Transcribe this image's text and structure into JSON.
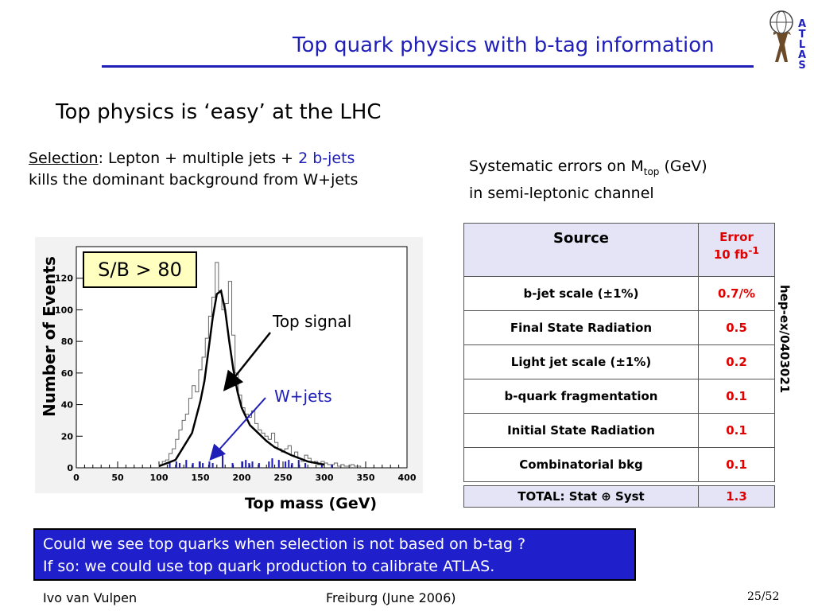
{
  "slide": {
    "title": "Top quark physics with b-tag information",
    "heading": "Top physics is ‘easy’ at the LHC",
    "selection": {
      "label": "Selection",
      "text_a": ": Lepton + multiple jets + ",
      "text_b": "2 b-jets",
      "line2": "kills the dominant background from W+jets"
    },
    "systematics": {
      "line1_a": "Systematic errors on M",
      "line1_sub": "top",
      "line1_b": " (GeV)",
      "line2": "in semi-leptonic channel"
    },
    "reference": "hep-ex/0403021",
    "question": {
      "line1": "Could we see top quarks when selection is not based on b-tag ?",
      "line2": "If so: we could use top quark production to calibrate ATLAS."
    },
    "footer": {
      "author": "Ivo van Vulpen",
      "event": "Freiburg (June 2006)",
      "page": "25/52"
    },
    "logo": {
      "text": "ATLAS",
      "icon": "atlas-figure-globe-icon"
    },
    "colors": {
      "accent": "#1f1fb8",
      "error": "#e00000",
      "box_bg": "#1f1fcc",
      "table_header": "#e4e4f6"
    }
  },
  "table": {
    "header": {
      "source": "Source",
      "error_a": "Error",
      "error_b": "10 fb",
      "error_sup": "-1"
    },
    "rows": [
      {
        "source": "b-jet scale (±1%)",
        "error": "0.7/%"
      },
      {
        "source": "Final State Radiation",
        "error": "0.5"
      },
      {
        "source": "Light jet scale (±1%)",
        "error": "0.2"
      },
      {
        "source": "b-quark fragmentation",
        "error": "0.1"
      },
      {
        "source": "Initial State Radiation",
        "error": "0.1"
      },
      {
        "source": "Combinatorial bkg",
        "error": "0.1"
      }
    ],
    "total": {
      "source": "TOTAL: Stat ⊕ Syst",
      "error": "1.3"
    }
  },
  "chart_data": {
    "type": "bar",
    "xlabel": "Top mass (GeV)",
    "ylabel": "Number of Events",
    "xlim": [
      0,
      400
    ],
    "ylim": [
      0,
      140
    ],
    "xticks": [
      0,
      50,
      100,
      150,
      200,
      250,
      300,
      350,
      400
    ],
    "yticks": [
      0,
      20,
      40,
      60,
      80,
      100,
      120
    ],
    "annotation_box": "S/B > 80",
    "labels": {
      "signal": "Top signal",
      "background": "W+jets"
    },
    "bin_width": 4,
    "signal_histogram": {
      "x": [
        100,
        104,
        108,
        112,
        116,
        120,
        124,
        128,
        132,
        136,
        140,
        144,
        148,
        152,
        156,
        160,
        164,
        168,
        172,
        176,
        180,
        184,
        188,
        192,
        196,
        200,
        204,
        208,
        212,
        216,
        220,
        224,
        228,
        232,
        236,
        240,
        244,
        248,
        252,
        256,
        260,
        264,
        268,
        272,
        276,
        280,
        284,
        288,
        292,
        296,
        300,
        304,
        308,
        312,
        316,
        320,
        324,
        328,
        332,
        336,
        340
      ],
      "values": [
        2,
        4,
        5,
        9,
        12,
        18,
        24,
        30,
        34,
        44,
        52,
        48,
        62,
        70,
        82,
        96,
        108,
        130,
        112,
        100,
        104,
        118,
        84,
        60,
        46,
        38,
        34,
        32,
        36,
        28,
        24,
        22,
        20,
        18,
        22,
        16,
        12,
        10,
        12,
        14,
        8,
        10,
        6,
        4,
        8,
        6,
        3,
        4,
        2,
        4,
        3,
        2,
        2,
        3,
        1,
        2,
        1,
        1,
        2,
        1,
        1
      ]
    },
    "fit_curve": {
      "x": [
        100,
        120,
        140,
        150,
        155,
        160,
        165,
        170,
        175,
        180,
        185,
        190,
        195,
        200,
        210,
        220,
        230,
        240,
        260,
        280,
        300
      ],
      "y": [
        1,
        5,
        22,
        42,
        55,
        75,
        95,
        110,
        112,
        100,
        80,
        62,
        48,
        38,
        27,
        22,
        17,
        13,
        8,
        4,
        2
      ]
    },
    "wjets_histogram": {
      "x": [
        112,
        120,
        124,
        132,
        140,
        148,
        152,
        160,
        164,
        176,
        188,
        200,
        204,
        208,
        212,
        220,
        232,
        236,
        244,
        252,
        256,
        260,
        268,
        276,
        296,
        308
      ],
      "values": [
        3,
        4,
        3,
        5,
        3,
        4,
        3,
        4,
        3,
        8,
        3,
        4,
        5,
        3,
        4,
        3,
        4,
        6,
        5,
        4,
        5,
        3,
        5,
        3,
        2,
        2
      ]
    }
  }
}
